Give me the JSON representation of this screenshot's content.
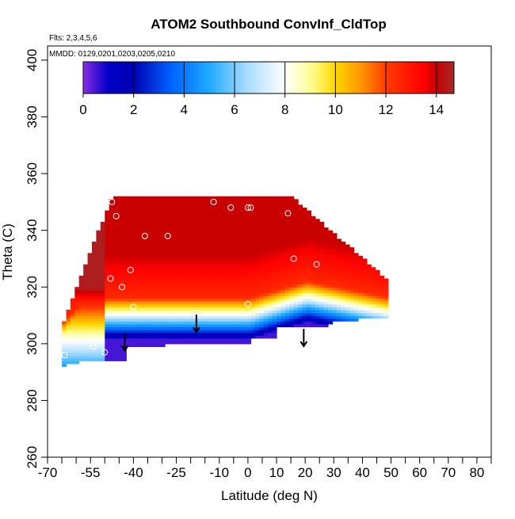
{
  "chart_data": {
    "type": "heatmap",
    "title": "ATOM2 Southbound ConvInf_CldTop",
    "flights_note": "Flts: 2,3,4,5,6",
    "dates_note": "MMDD: 0129,0201,0203,0205,0210",
    "xlabel": "Latitude (deg N)",
    "ylabel": "Theta (C)",
    "xlim": [
      -70,
      85
    ],
    "ylim": [
      260,
      405
    ],
    "x_ticks": [
      -70,
      -65,
      -60,
      -55,
      -50,
      -45,
      -40,
      -35,
      -30,
      -25,
      -20,
      -15,
      -10,
      -5,
      0,
      5,
      10,
      15,
      20,
      25,
      30,
      35,
      40,
      45,
      50,
      55,
      60,
      65,
      70,
      75,
      80,
      85
    ],
    "x_tick_labels": [
      {
        "value": -70,
        "text": "-70"
      },
      {
        "value": -55,
        "text": "-55"
      },
      {
        "value": -40,
        "text": "-40"
      },
      {
        "value": -25,
        "text": "-25"
      },
      {
        "value": -10,
        "text": "-10"
      },
      {
        "value": 0,
        "text": "0"
      },
      {
        "value": 10,
        "text": "10"
      },
      {
        "value": 20,
        "text": "20"
      },
      {
        "value": 30,
        "text": "30"
      },
      {
        "value": 40,
        "text": "40"
      },
      {
        "value": 50,
        "text": "50"
      },
      {
        "value": 60,
        "text": "60"
      },
      {
        "value": 70,
        "text": "70"
      },
      {
        "value": 80,
        "text": "80"
      }
    ],
    "y_ticks": [
      {
        "value": 260,
        "text": "260"
      },
      {
        "value": 280,
        "text": "280"
      },
      {
        "value": 300,
        "text": "300"
      },
      {
        "value": 320,
        "text": "320"
      },
      {
        "value": 340,
        "text": "340"
      },
      {
        "value": 360,
        "text": "360"
      },
      {
        "value": 380,
        "text": "380"
      },
      {
        "value": 400,
        "text": "400"
      }
    ],
    "colorbar": {
      "range": [
        0,
        14.7
      ],
      "ticks": [
        {
          "value": 0,
          "text": "0"
        },
        {
          "value": 2,
          "text": "2"
        },
        {
          "value": 4,
          "text": "4"
        },
        {
          "value": 6,
          "text": "6"
        },
        {
          "value": 8,
          "text": "8"
        },
        {
          "value": 10,
          "text": "10"
        },
        {
          "value": 12,
          "text": "12"
        },
        {
          "value": 14,
          "text": "14"
        }
      ],
      "stops": [
        {
          "v": 0.0,
          "color": "#8a2be2"
        },
        {
          "v": 1.0,
          "color": "#0000c8"
        },
        {
          "v": 2.0,
          "color": "#0000b4"
        },
        {
          "v": 3.5,
          "color": "#0064ff"
        },
        {
          "v": 5.0,
          "color": "#1eaaff"
        },
        {
          "v": 6.5,
          "color": "#aadcff"
        },
        {
          "v": 8.0,
          "color": "#ffffff"
        },
        {
          "v": 9.0,
          "color": "#ffff96"
        },
        {
          "v": 10.0,
          "color": "#ffd700"
        },
        {
          "v": 11.0,
          "color": "#ff9600"
        },
        {
          "v": 12.0,
          "color": "#ff3c00"
        },
        {
          "v": 13.5,
          "color": "#ff0000"
        },
        {
          "v": 14.0,
          "color": "#c80000"
        },
        {
          "v": 14.7,
          "color": "#a52a2a"
        }
      ]
    },
    "field": {
      "lat_range": [
        -65,
        50
      ],
      "theta_range": [
        290,
        352
      ],
      "description": "Southbound latitude-theta curtain: values 0-4 near 295-305 C, rising to 12-14 above 315 C"
    },
    "observations": [
      {
        "lat": -64.0,
        "theta": 296
      },
      {
        "lat": -54.0,
        "theta": 299
      },
      {
        "lat": -50.0,
        "theta": 297
      },
      {
        "lat": -46.0,
        "theta": 345
      },
      {
        "lat": -48.0,
        "theta": 323
      },
      {
        "lat": -44.0,
        "theta": 320
      },
      {
        "lat": -47.5,
        "theta": 350
      },
      {
        "lat": -41.0,
        "theta": 326
      },
      {
        "lat": -40.0,
        "theta": 313
      },
      {
        "lat": -36.0,
        "theta": 338
      },
      {
        "lat": -28.0,
        "theta": 338
      },
      {
        "lat": -12.0,
        "theta": 350
      },
      {
        "lat": -6.0,
        "theta": 348
      },
      {
        "lat": 0.0,
        "theta": 348
      },
      {
        "lat": 1.0,
        "theta": 348
      },
      {
        "lat": 0.0,
        "theta": 314
      },
      {
        "lat": 14.0,
        "theta": 346
      },
      {
        "lat": 16.0,
        "theta": 330
      },
      {
        "lat": 24.0,
        "theta": 328
      }
    ],
    "arrows": [
      {
        "lat": -43.0,
        "theta": 296.5
      },
      {
        "lat": -18.0,
        "theta": 303.0
      },
      {
        "lat": 19.5,
        "theta": 298.0
      }
    ]
  }
}
